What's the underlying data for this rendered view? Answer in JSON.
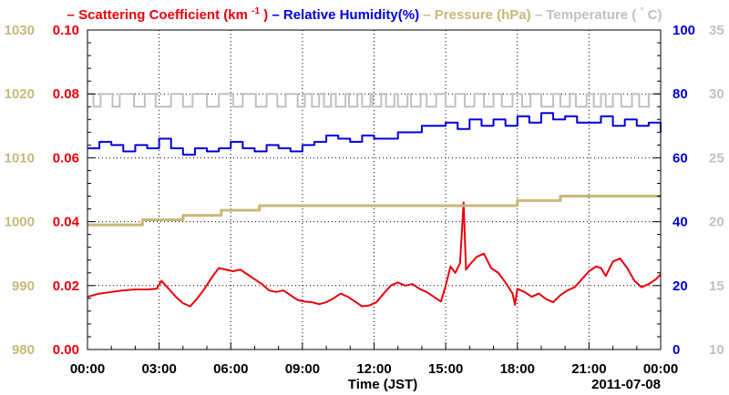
{
  "chart_data": {
    "type": "line",
    "date": "2011-07-08",
    "xlabel": "Time (JST)",
    "x_ticks": [
      "00:00",
      "03:00",
      "06:00",
      "09:00",
      "12:00",
      "15:00",
      "18:00",
      "21:00",
      "00:00"
    ],
    "x_range_hours": [
      0,
      24
    ],
    "grid": true,
    "legend": [
      {
        "key": "scat",
        "dash": "–",
        "text": "Scattering Coefficient (km",
        "sup": "-1",
        "tail": ")",
        "color": "#e8000b"
      },
      {
        "key": "rh",
        "dash": "–",
        "text": "Relative Humidity(%)",
        "color": "#0000dd"
      },
      {
        "key": "pres",
        "dash": "–",
        "text": "Pressure (hPa)",
        "color": "#c8b878"
      },
      {
        "key": "temp",
        "dash": "–",
        "text": "Temperature (",
        "sup": "°",
        "tail": "C)",
        "color": "#c0c0c0"
      }
    ],
    "axes": {
      "pressure": {
        "color": "#c8b878",
        "ticks": [
          "1030",
          "1020",
          "1010",
          "1000",
          "990",
          "980"
        ],
        "range": [
          980,
          1030
        ]
      },
      "scattering": {
        "color": "#e8000b",
        "ticks": [
          "0.10",
          "0.08",
          "0.06",
          "0.04",
          "0.02",
          "0.00"
        ],
        "range": [
          0,
          0.1
        ]
      },
      "humidity": {
        "color": "#0000dd",
        "ticks": [
          "100",
          "80",
          "60",
          "40",
          "20",
          "0"
        ],
        "range": [
          0,
          100
        ]
      },
      "temperature": {
        "color": "#c0c0c0",
        "ticks": [
          "35",
          "30",
          "25",
          "20",
          "15",
          "10"
        ],
        "range": [
          10,
          35
        ]
      }
    },
    "series": [
      {
        "name": "Scattering Coefficient (km-1)",
        "axis": "scattering",
        "color": "#e8000b",
        "x": [
          0,
          0.5,
          1,
          1.5,
          2,
          2.5,
          2.9,
          3.1,
          3.4,
          3.7,
          4.0,
          4.3,
          4.6,
          4.9,
          5.2,
          5.5,
          5.8,
          6.1,
          6.4,
          6.7,
          7.0,
          7.3,
          7.6,
          7.9,
          8.2,
          8.5,
          8.8,
          9.1,
          9.4,
          9.7,
          10.0,
          10.3,
          10.6,
          10.9,
          11.2,
          11.5,
          11.8,
          12.1,
          12.4,
          12.7,
          13.0,
          13.3,
          13.6,
          13.9,
          14.2,
          14.5,
          14.8,
          15.0,
          15.2,
          15.4,
          15.6,
          15.75,
          15.85,
          16.0,
          16.3,
          16.6,
          16.9,
          17.2,
          17.5,
          17.8,
          17.9,
          18.0,
          18.3,
          18.6,
          18.9,
          19.2,
          19.5,
          19.8,
          20.1,
          20.4,
          20.7,
          21.0,
          21.3,
          21.5,
          21.7,
          22.0,
          22.3,
          22.6,
          22.9,
          23.2,
          23.5,
          23.8,
          24.0
        ],
        "values": [
          0.0165,
          0.0175,
          0.018,
          0.0185,
          0.0188,
          0.0188,
          0.019,
          0.0215,
          0.019,
          0.0165,
          0.0145,
          0.0135,
          0.016,
          0.019,
          0.0225,
          0.0255,
          0.025,
          0.0245,
          0.025,
          0.0235,
          0.022,
          0.0205,
          0.0185,
          0.018,
          0.0185,
          0.017,
          0.0155,
          0.015,
          0.0148,
          0.0142,
          0.0148,
          0.016,
          0.0175,
          0.0165,
          0.015,
          0.0135,
          0.0138,
          0.0148,
          0.0175,
          0.02,
          0.021,
          0.02,
          0.0205,
          0.019,
          0.018,
          0.0165,
          0.015,
          0.02,
          0.026,
          0.024,
          0.027,
          0.046,
          0.025,
          0.0265,
          0.029,
          0.03,
          0.0255,
          0.024,
          0.021,
          0.0175,
          0.014,
          0.019,
          0.018,
          0.0165,
          0.0175,
          0.0158,
          0.0148,
          0.017,
          0.0185,
          0.0195,
          0.022,
          0.0245,
          0.026,
          0.0255,
          0.023,
          0.0275,
          0.0285,
          0.0255,
          0.0215,
          0.0195,
          0.0205,
          0.022,
          0.0235
        ]
      },
      {
        "name": "Relative Humidity(%)",
        "axis": "humidity",
        "color": "#0000dd",
        "x": [
          0,
          0.5,
          1,
          1.5,
          2,
          2.5,
          3,
          3.5,
          4,
          4.5,
          5,
          5.5,
          6,
          6.5,
          7,
          7.5,
          8,
          8.5,
          9,
          9.5,
          10,
          10.5,
          11,
          11.5,
          12,
          12.5,
          13,
          13.5,
          14,
          14.5,
          15,
          15.5,
          16,
          16.5,
          17,
          17.5,
          18,
          18.5,
          19,
          19.5,
          20,
          20.5,
          21,
          21.5,
          22,
          22.5,
          23,
          23.5,
          24
        ],
        "values": [
          63,
          65,
          64,
          62,
          64,
          63,
          66,
          63,
          61,
          63,
          62,
          63,
          65,
          63,
          62,
          64,
          63,
          62,
          64,
          65,
          67,
          66,
          65,
          67,
          66,
          66,
          68,
          68,
          70,
          70,
          71,
          69,
          72,
          70,
          72,
          70,
          73,
          71,
          74,
          72,
          73,
          71,
          71,
          73,
          70,
          72,
          70,
          71,
          68
        ]
      },
      {
        "name": "Pressure (hPa)",
        "axis": "pressure",
        "color": "#c8b878",
        "x": [
          0,
          2.3,
          2.3,
          4.0,
          4.0,
          5.6,
          5.6,
          7.2,
          7.2,
          18.0,
          18.0,
          19.8,
          19.8,
          24
        ],
        "values": [
          999.5,
          999.5,
          1000.3,
          1000.3,
          1001,
          1001,
          1001.8,
          1001.8,
          1002.5,
          1002.5,
          1003.3,
          1003.3,
          1004,
          1004
        ]
      },
      {
        "name": "Temperature (°C)",
        "axis": "temperature",
        "color": "#c0c0c0",
        "x": [
          0,
          24
        ],
        "values": [
          30,
          30
        ],
        "low": 29,
        "dips": [
          [
            0.25,
            0.55
          ],
          [
            1.05,
            1.35
          ],
          [
            1.95,
            2.4
          ],
          [
            2.85,
            3.5
          ],
          [
            4.0,
            4.4
          ],
          [
            5.0,
            5.5
          ],
          [
            6.1,
            6.5
          ],
          [
            7.05,
            7.5
          ],
          [
            7.95,
            8.3
          ],
          [
            8.8,
            9.1
          ],
          [
            9.4,
            9.7
          ],
          [
            9.9,
            10.2
          ],
          [
            10.4,
            10.8
          ],
          [
            10.95,
            11.3
          ],
          [
            11.5,
            11.85
          ],
          [
            11.95,
            12.3
          ],
          [
            12.5,
            12.85
          ],
          [
            13.0,
            13.4
          ],
          [
            13.55,
            13.95
          ],
          [
            14.2,
            14.6
          ],
          [
            15.0,
            15.4
          ],
          [
            15.8,
            16.2
          ],
          [
            16.6,
            17.0
          ],
          [
            17.35,
            17.8
          ],
          [
            18.2,
            18.55
          ],
          [
            19.0,
            19.5
          ],
          [
            19.8,
            20.2
          ],
          [
            20.45,
            20.9
          ],
          [
            21.2,
            21.5
          ],
          [
            21.7,
            22.0
          ],
          [
            22.35,
            22.8
          ],
          [
            23.1,
            23.5
          ]
        ]
      }
    ]
  }
}
